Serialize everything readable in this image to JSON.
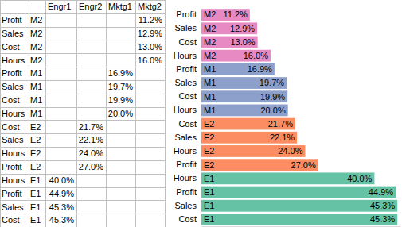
{
  "chart_data": {
    "type": "bar",
    "orientation": "horizontal",
    "categories": [
      "Profit",
      "Sales",
      "Cost",
      "Hours",
      "Profit",
      "Sales",
      "Cost",
      "Hours",
      "Cost",
      "Sales",
      "Hours",
      "Profit",
      "Hours",
      "Profit",
      "Sales",
      "Cost"
    ],
    "bar_labels": [
      "M2",
      "M2",
      "M2",
      "M2",
      "M1",
      "M1",
      "M1",
      "M1",
      "E2",
      "E2",
      "E2",
      "E2",
      "E1",
      "E1",
      "E1",
      "E1"
    ],
    "values": [
      11.2,
      12.9,
      13.0,
      16.0,
      16.9,
      19.7,
      19.9,
      20.0,
      21.7,
      22.1,
      24.0,
      27.0,
      40.0,
      44.9,
      45.3,
      45.3
    ],
    "value_labels": [
      "11.2%",
      "12.9%",
      "13.0%",
      "16.0%",
      "16.9%",
      "19.7%",
      "19.9%",
      "20.0%",
      "21.7%",
      "22.1%",
      "24.0%",
      "27.0%",
      "40.0%",
      "44.9%",
      "45.3%",
      "45.3%"
    ],
    "colors": [
      "#e78ac3",
      "#e78ac3",
      "#e78ac3",
      "#e78ac3",
      "#8da0cb",
      "#8da0cb",
      "#8da0cb",
      "#8da0cb",
      "#fc8d62",
      "#fc8d62",
      "#fc8d62",
      "#fc8d62",
      "#66c2a5",
      "#66c2a5",
      "#66c2a5",
      "#66c2a5"
    ],
    "xlim": [
      0,
      46
    ],
    "xticks": [],
    "data_labels": true,
    "tick_labels": "y",
    "grid": false
  },
  "table": {
    "columns": [
      "Engr1",
      "Engr2",
      "Mktg1",
      "Mktg2"
    ],
    "rows": [
      {
        "label": "Profit",
        "group": "M2",
        "cells": [
          null,
          null,
          null,
          "11.2%"
        ]
      },
      {
        "label": "Sales",
        "group": "M2",
        "cells": [
          null,
          null,
          null,
          "12.9%"
        ]
      },
      {
        "label": "Cost",
        "group": "M2",
        "cells": [
          null,
          null,
          null,
          "13.0%"
        ]
      },
      {
        "label": "Hours",
        "group": "M2",
        "cells": [
          null,
          null,
          null,
          "16.0%"
        ]
      },
      {
        "label": "Profit",
        "group": "M1",
        "cells": [
          null,
          null,
          "16.9%",
          null
        ]
      },
      {
        "label": "Sales",
        "group": "M1",
        "cells": [
          null,
          null,
          "19.7%",
          null
        ]
      },
      {
        "label": "Cost",
        "group": "M1",
        "cells": [
          null,
          null,
          "19.9%",
          null
        ]
      },
      {
        "label": "Hours",
        "group": "M1",
        "cells": [
          null,
          null,
          "20.0%",
          null
        ]
      },
      {
        "label": "Cost",
        "group": "E2",
        "cells": [
          null,
          "21.7%",
          null,
          null
        ]
      },
      {
        "label": "Sales",
        "group": "E2",
        "cells": [
          null,
          "22.1%",
          null,
          null
        ]
      },
      {
        "label": "Hours",
        "group": "E2",
        "cells": [
          null,
          "24.0%",
          null,
          null
        ]
      },
      {
        "label": "Profit",
        "group": "E2",
        "cells": [
          null,
          "27.0%",
          null,
          null
        ]
      },
      {
        "label": "Hours",
        "group": "E1",
        "cells": [
          "40.0%",
          null,
          null,
          null
        ]
      },
      {
        "label": "Profit",
        "group": "E1",
        "cells": [
          "44.9%",
          null,
          null,
          null
        ]
      },
      {
        "label": "Sales",
        "group": "E1",
        "cells": [
          "45.3%",
          null,
          null,
          null
        ]
      },
      {
        "label": "Cost",
        "group": "E1",
        "cells": [
          "45.3%",
          null,
          null,
          null
        ]
      }
    ]
  }
}
